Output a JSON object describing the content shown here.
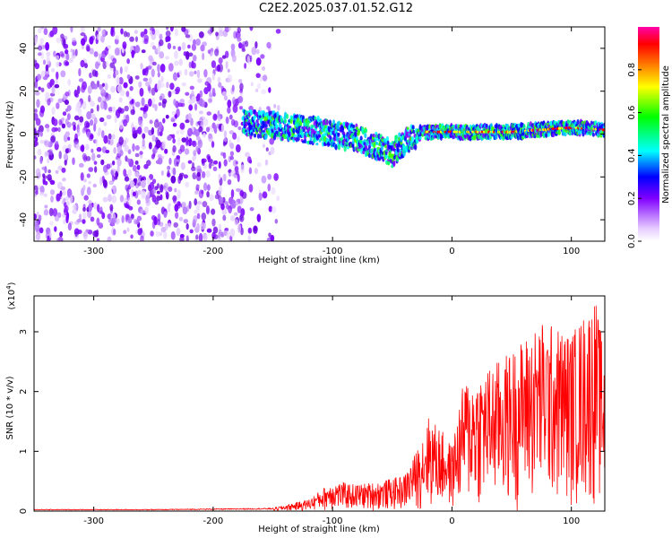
{
  "title": "C2E2.2025.037.01.52.G12",
  "chart_data": [
    {
      "type": "heatmap",
      "title": "C2E2.2025.037.01.52.G12",
      "xlabel": "Height of straight line (km)",
      "ylabel": "Frequency (Hz)",
      "xlim": [
        -350,
        128
      ],
      "ylim": [
        -50,
        50
      ],
      "x_ticks": [
        -300,
        -200,
        -100,
        0,
        100
      ],
      "y_ticks": [
        -40,
        -20,
        0,
        20,
        40
      ],
      "colorbar": {
        "label": "Normalized spectral amplitude",
        "range": [
          0,
          1
        ],
        "ticks": [
          0.0,
          0.2,
          0.4,
          0.6,
          0.8
        ],
        "tick_labels": [
          "0.0",
          "0.2",
          "0.4",
          "0.6",
          "0.8"
        ],
        "colors": [
          "#ffffff",
          "#d9b3ff",
          "#8000ff",
          "#0000ff",
          "#00ffff",
          "#00ff00",
          "#ffff00",
          "#ff8000",
          "#ff0000",
          "#ff00aa"
        ]
      },
      "regions": [
        {
          "desc": "diffuse purple noise",
          "x": [
            -350,
            -145
          ],
          "y": [
            -50,
            50
          ],
          "amplitude": 0.1
        },
        {
          "desc": "signal track",
          "x": [
            -175,
            128
          ],
          "center_freq": [
            [
              -175,
              5
            ],
            [
              -150,
              4
            ],
            [
              -120,
              2
            ],
            [
              -100,
              0
            ],
            [
              -80,
              -2
            ],
            [
              -60,
              -6
            ],
            [
              -50,
              -9
            ],
            [
              -40,
              -4
            ],
            [
              -25,
              1
            ],
            [
              0,
              1
            ],
            [
              50,
              1
            ],
            [
              100,
              3
            ],
            [
              128,
              2
            ]
          ],
          "amplitude": 0.6
        }
      ]
    },
    {
      "type": "line",
      "xlabel": "Height of straight line (km)",
      "ylabel": "SNR (10 * v/v)",
      "y_multiplier": "(x10",
      "y_multiplier_exp": "4",
      "xlim": [
        -350,
        128
      ],
      "ylim": [
        0,
        3.6
      ],
      "x_ticks": [
        -300,
        -200,
        -100,
        0,
        100
      ],
      "y_ticks": [
        0,
        1,
        2,
        3
      ],
      "color": "#ff0000",
      "envelope": [
        {
          "x": -350,
          "y": 0.03
        },
        {
          "x": -250,
          "y": 0.03
        },
        {
          "x": -150,
          "y": 0.05
        },
        {
          "x": -120,
          "y": 0.2
        },
        {
          "x": -100,
          "y": 0.5
        },
        {
          "x": -80,
          "y": 0.45
        },
        {
          "x": -60,
          "y": 0.5
        },
        {
          "x": -40,
          "y": 0.6
        },
        {
          "x": -30,
          "y": 1.0
        },
        {
          "x": -20,
          "y": 1.6
        },
        {
          "x": -10,
          "y": 1.4
        },
        {
          "x": 0,
          "y": 1.1
        },
        {
          "x": 10,
          "y": 2.2
        },
        {
          "x": 30,
          "y": 2.4
        },
        {
          "x": 50,
          "y": 2.7
        },
        {
          "x": 75,
          "y": 3.2
        },
        {
          "x": 100,
          "y": 3.0
        },
        {
          "x": 120,
          "y": 3.6
        },
        {
          "x": 128,
          "y": 2.6
        }
      ]
    }
  ]
}
